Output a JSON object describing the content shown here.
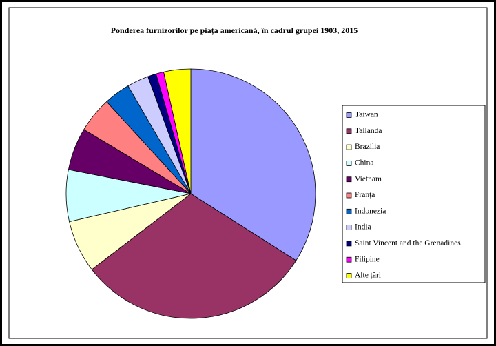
{
  "chart_data": {
    "type": "pie",
    "title": "Ponderea furnizorilor pe piața americană, în cadrul grupei 1903, 2015",
    "categories": [
      "Taiwan",
      "Tailanda",
      "Brazilia",
      "China",
      "Vietnam",
      "Franța",
      "Indonezia",
      "India",
      "Saint Vincent and the Grenadines",
      "Filipine",
      "Alte țări"
    ],
    "values": [
      34,
      30.6,
      6.8,
      6.7,
      5.5,
      4.6,
      3.4,
      2.8,
      1.1,
      1,
      3.5
    ],
    "colors": [
      "#9999ff",
      "#993366",
      "#ffffcc",
      "#ccffff",
      "#660066",
      "#ff8080",
      "#0066cc",
      "#ccccff",
      "#000080",
      "#ff00ff",
      "#ffff00"
    ],
    "legend": "right"
  }
}
